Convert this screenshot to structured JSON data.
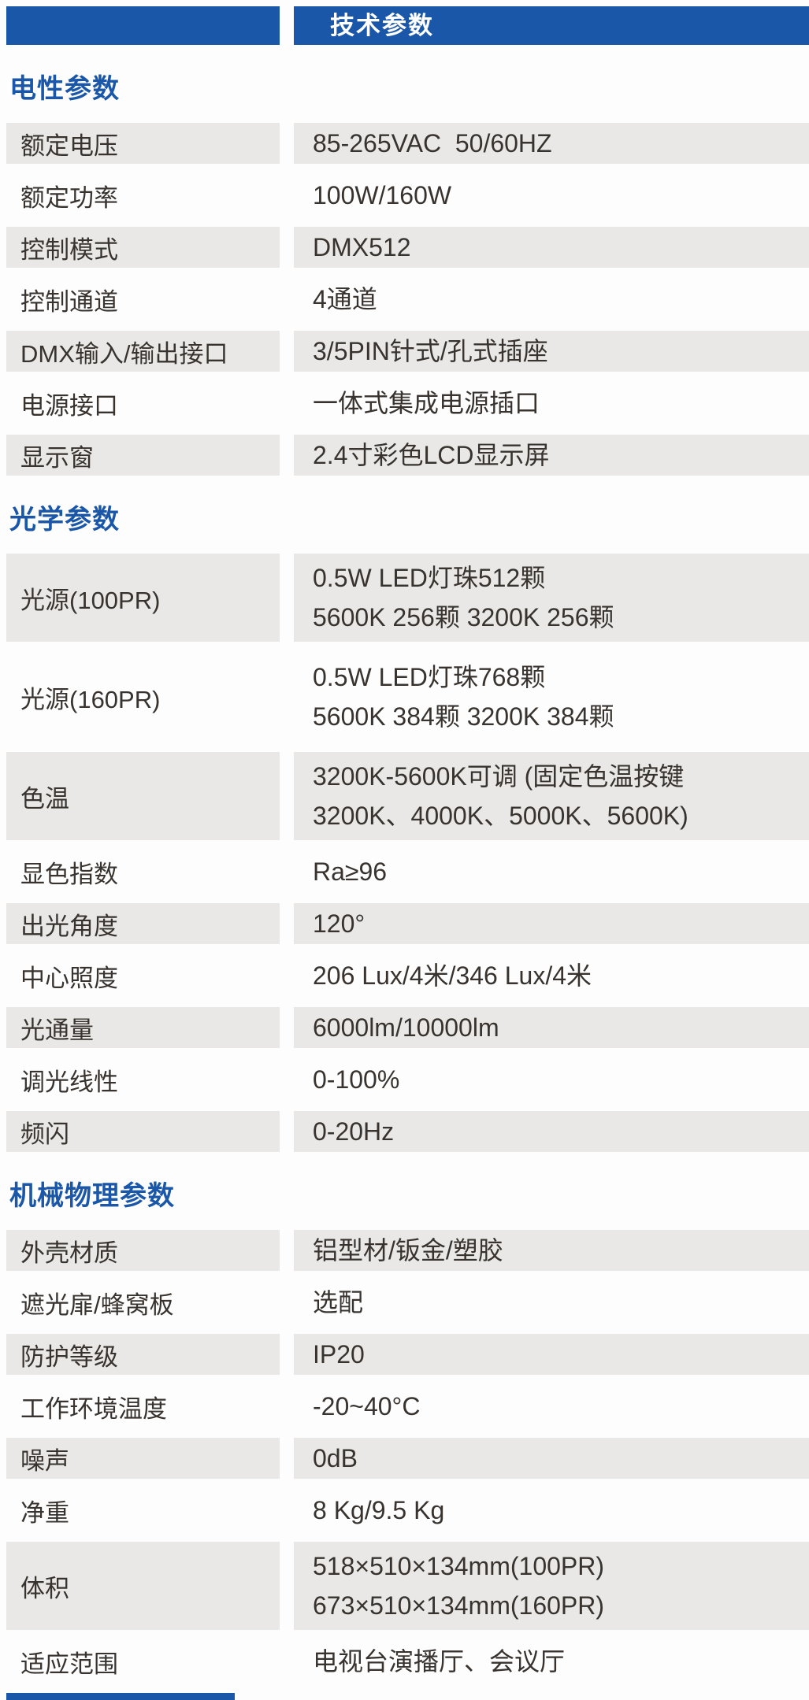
{
  "header": {
    "title": "技术参数"
  },
  "colors": {
    "accent_blue": "#1B57A8",
    "stripe_gray": "#E9E8E6",
    "text_dark": "#38332F"
  },
  "sections": [
    {
      "title": "电性参数",
      "rows": [
        {
          "label": "额定电压",
          "lines": [
            "85-265VAC  50/60HZ"
          ]
        },
        {
          "label": "额定功率",
          "lines": [
            "100W/160W"
          ]
        },
        {
          "label": "控制模式",
          "lines": [
            "DMX512"
          ]
        },
        {
          "label": "控制通道",
          "lines": [
            "4通道"
          ]
        },
        {
          "label": "DMX输入/输出接口",
          "lines": [
            "3/5PIN针式/孔式插座"
          ]
        },
        {
          "label": "电源接口",
          "lines": [
            "一体式集成电源插口"
          ]
        },
        {
          "label": "显示窗",
          "lines": [
            "2.4寸彩色LCD显示屏"
          ]
        }
      ]
    },
    {
      "title": "光学参数",
      "rows": [
        {
          "label": "光源(100PR)",
          "lines": [
            "0.5W LED灯珠512颗",
            "5600K 256颗 3200K 256颗"
          ]
        },
        {
          "label": "光源(160PR)",
          "lines": [
            "0.5W LED灯珠768颗",
            "5600K 384颗 3200K 384颗"
          ]
        },
        {
          "label": "色温",
          "lines": [
            "3200K-5600K可调 (固定色温按键",
            "3200K、4000K、5000K、5600K)"
          ]
        },
        {
          "label": "显色指数",
          "lines": [
            "Ra≥96"
          ]
        },
        {
          "label": "出光角度",
          "lines": [
            "120°"
          ]
        },
        {
          "label": "中心照度",
          "lines": [
            "206 Lux/4米/346 Lux/4米"
          ]
        },
        {
          "label": "光通量",
          "lines": [
            "6000lm/10000lm"
          ]
        },
        {
          "label": "调光线性",
          "lines": [
            "0-100%"
          ]
        },
        {
          "label": "频闪",
          "lines": [
            "0-20Hz"
          ]
        }
      ]
    },
    {
      "title": "机械物理参数",
      "rows": [
        {
          "label": "外壳材质",
          "lines": [
            "铝型材/钣金/塑胶"
          ]
        },
        {
          "label": "遮光扉/蜂窝板",
          "lines": [
            "选配"
          ]
        },
        {
          "label": "防护等级",
          "lines": [
            "IP20"
          ]
        },
        {
          "label": "工作环境温度",
          "lines": [
            "-20~40°C"
          ]
        },
        {
          "label": "噪声",
          "lines": [
            "0dB"
          ]
        },
        {
          "label": "净重",
          "lines": [
            "8 Kg/9.5 Kg"
          ]
        },
        {
          "label": "体积",
          "lines": [
            "518×510×134mm(100PR)",
            "673×510×134mm(160PR)"
          ]
        },
        {
          "label": "适应范围",
          "lines": [
            "电视台演播厅、会议厅"
          ]
        }
      ]
    }
  ]
}
